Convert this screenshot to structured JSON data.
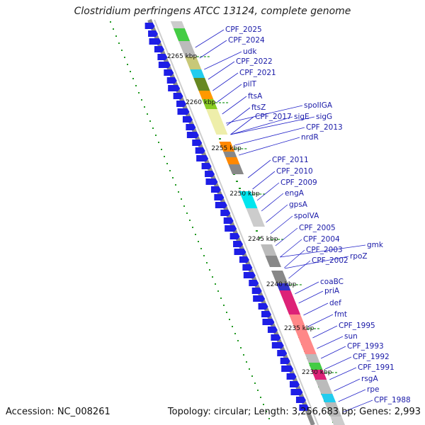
{
  "title": "Clostridium perfringens ATCC 13124, complete genome",
  "accession": "Accession: NC_008261",
  "summary": "Topology: circular; Length: 3,256,683 bp; Genes: 2,993",
  "kbp_labels": [
    "2265 kbp",
    "2260 kbp",
    "2255 kbp",
    "2250 kbp",
    "2245 kbp",
    "2240 kbp",
    "2235 kbp",
    "2230 kbp"
  ],
  "gene_labels": [
    "CPF_2025",
    "CPF_2024",
    "udk",
    "CPF_2022",
    "CPF_2021",
    "pilT",
    "ftsA",
    "ftsZ",
    "spoIIGA",
    "CPF_2017",
    "sigE",
    "sigG",
    "CPF_2013",
    "nrdR",
    "CPF_2011",
    "CPF_2010",
    "CPF_2009",
    "engA",
    "gpsA",
    "spoIVA",
    "CPF_2005",
    "CPF_2004",
    "CPF_2003",
    "CPF_2002",
    "gmk",
    "rpoZ",
    "coaBC",
    "priA",
    "def",
    "fmt",
    "CPF_1995",
    "sun",
    "CPF_1993",
    "CPF_1992",
    "CPF_1991",
    "rsgA",
    "rpe",
    "CPF_1988"
  ],
  "colors": {
    "label": "#1a1aa8",
    "arrow": "#1e1ee6",
    "backbone": "#8c8c8c",
    "cog_band": [
      "#cccccc",
      "#44cc44",
      "#bbbbbb",
      "#c8c878",
      "#22ccee",
      "#668822",
      "#ff9900",
      "#88cc22",
      "#eeeeaa",
      "#ff8800",
      "#888888",
      "#00e5ee",
      "#dd2277",
      "#ff8888",
      "#3333cc"
    ]
  }
}
